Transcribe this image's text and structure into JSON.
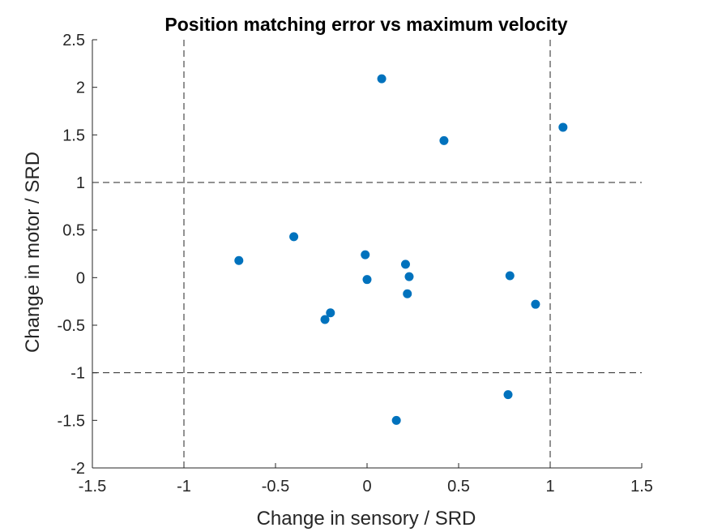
{
  "chart_data": {
    "type": "scatter",
    "title": "Position matching error vs maximum velocity",
    "xlabel": "Change in sensory / SRD",
    "ylabel": "Change in motor / SRD",
    "xlim": [
      -1.5,
      1.5
    ],
    "ylim": [
      -2,
      2.5
    ],
    "xticks": [
      -1.5,
      -1,
      -0.5,
      0,
      0.5,
      1,
      1.5
    ],
    "xtick_labels": [
      "-1.5",
      "-1",
      "-0.5",
      "0",
      "0.5",
      "1",
      "1.5"
    ],
    "yticks": [
      -2,
      -1.5,
      -1,
      -0.5,
      0,
      0.5,
      1,
      1.5,
      2,
      2.5
    ],
    "ytick_labels": [
      "-2",
      "-1.5",
      "-1",
      "-0.5",
      "0",
      "0.5",
      "1",
      "1.5",
      "2",
      "2.5"
    ],
    "grid": false,
    "reference_lines": {
      "vertical_x": [
        -1,
        1
      ],
      "horizontal_y": [
        -1,
        1
      ],
      "style": "dashed"
    },
    "marker_color": "#0072BD",
    "points": [
      {
        "x": 0.08,
        "y": 2.09
      },
      {
        "x": 1.07,
        "y": 1.58
      },
      {
        "x": 0.42,
        "y": 1.44
      },
      {
        "x": -0.4,
        "y": 0.43
      },
      {
        "x": -0.7,
        "y": 0.18
      },
      {
        "x": -0.01,
        "y": 0.24
      },
      {
        "x": 0.21,
        "y": 0.14
      },
      {
        "x": 0.23,
        "y": 0.01
      },
      {
        "x": 0.0,
        "y": -0.02
      },
      {
        "x": 0.78,
        "y": 0.02
      },
      {
        "x": 0.22,
        "y": -0.17
      },
      {
        "x": 0.92,
        "y": -0.28
      },
      {
        "x": -0.2,
        "y": -0.37
      },
      {
        "x": -0.23,
        "y": -0.44
      },
      {
        "x": 0.77,
        "y": -1.23
      },
      {
        "x": 0.16,
        "y": -1.5
      }
    ]
  }
}
